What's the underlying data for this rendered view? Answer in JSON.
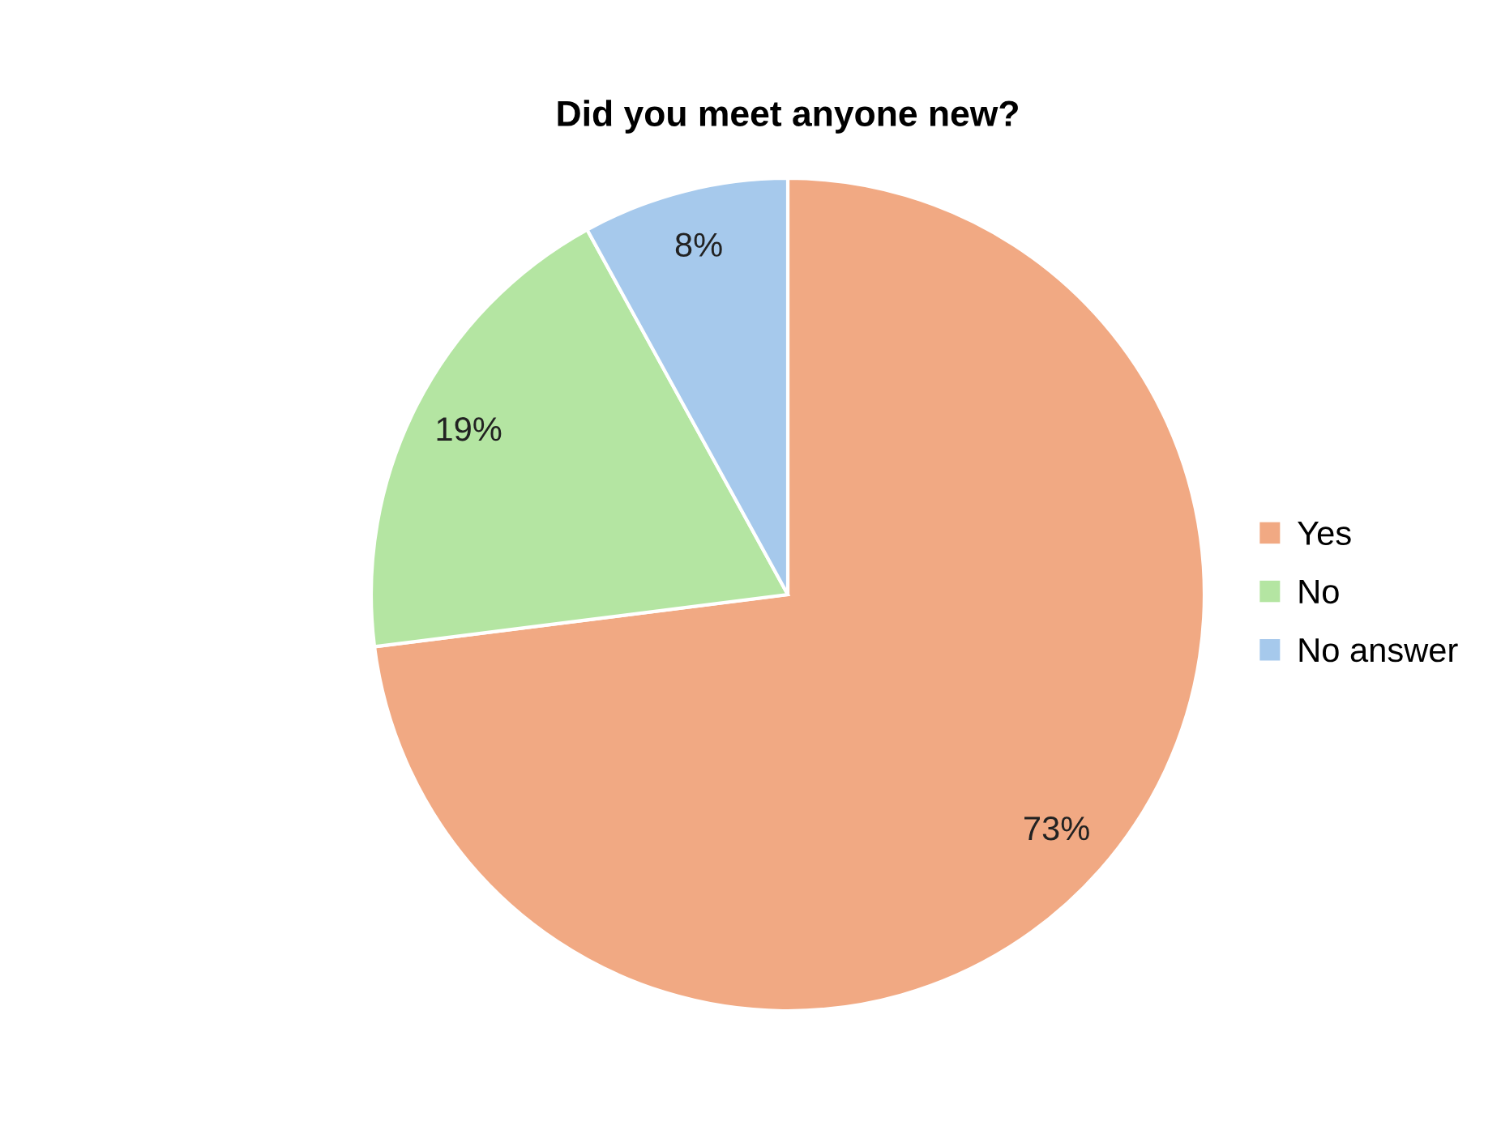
{
  "chart_data": {
    "type": "pie",
    "title": "Did you meet anyone new?",
    "categories": [
      "Yes",
      "No",
      "No answer"
    ],
    "values": [
      73,
      19,
      8
    ],
    "value_labels": [
      "73%",
      "19%",
      "8%"
    ],
    "colors": [
      "#f1a983",
      "#b4e5a2",
      "#a6c9ec"
    ],
    "legend": "right"
  }
}
